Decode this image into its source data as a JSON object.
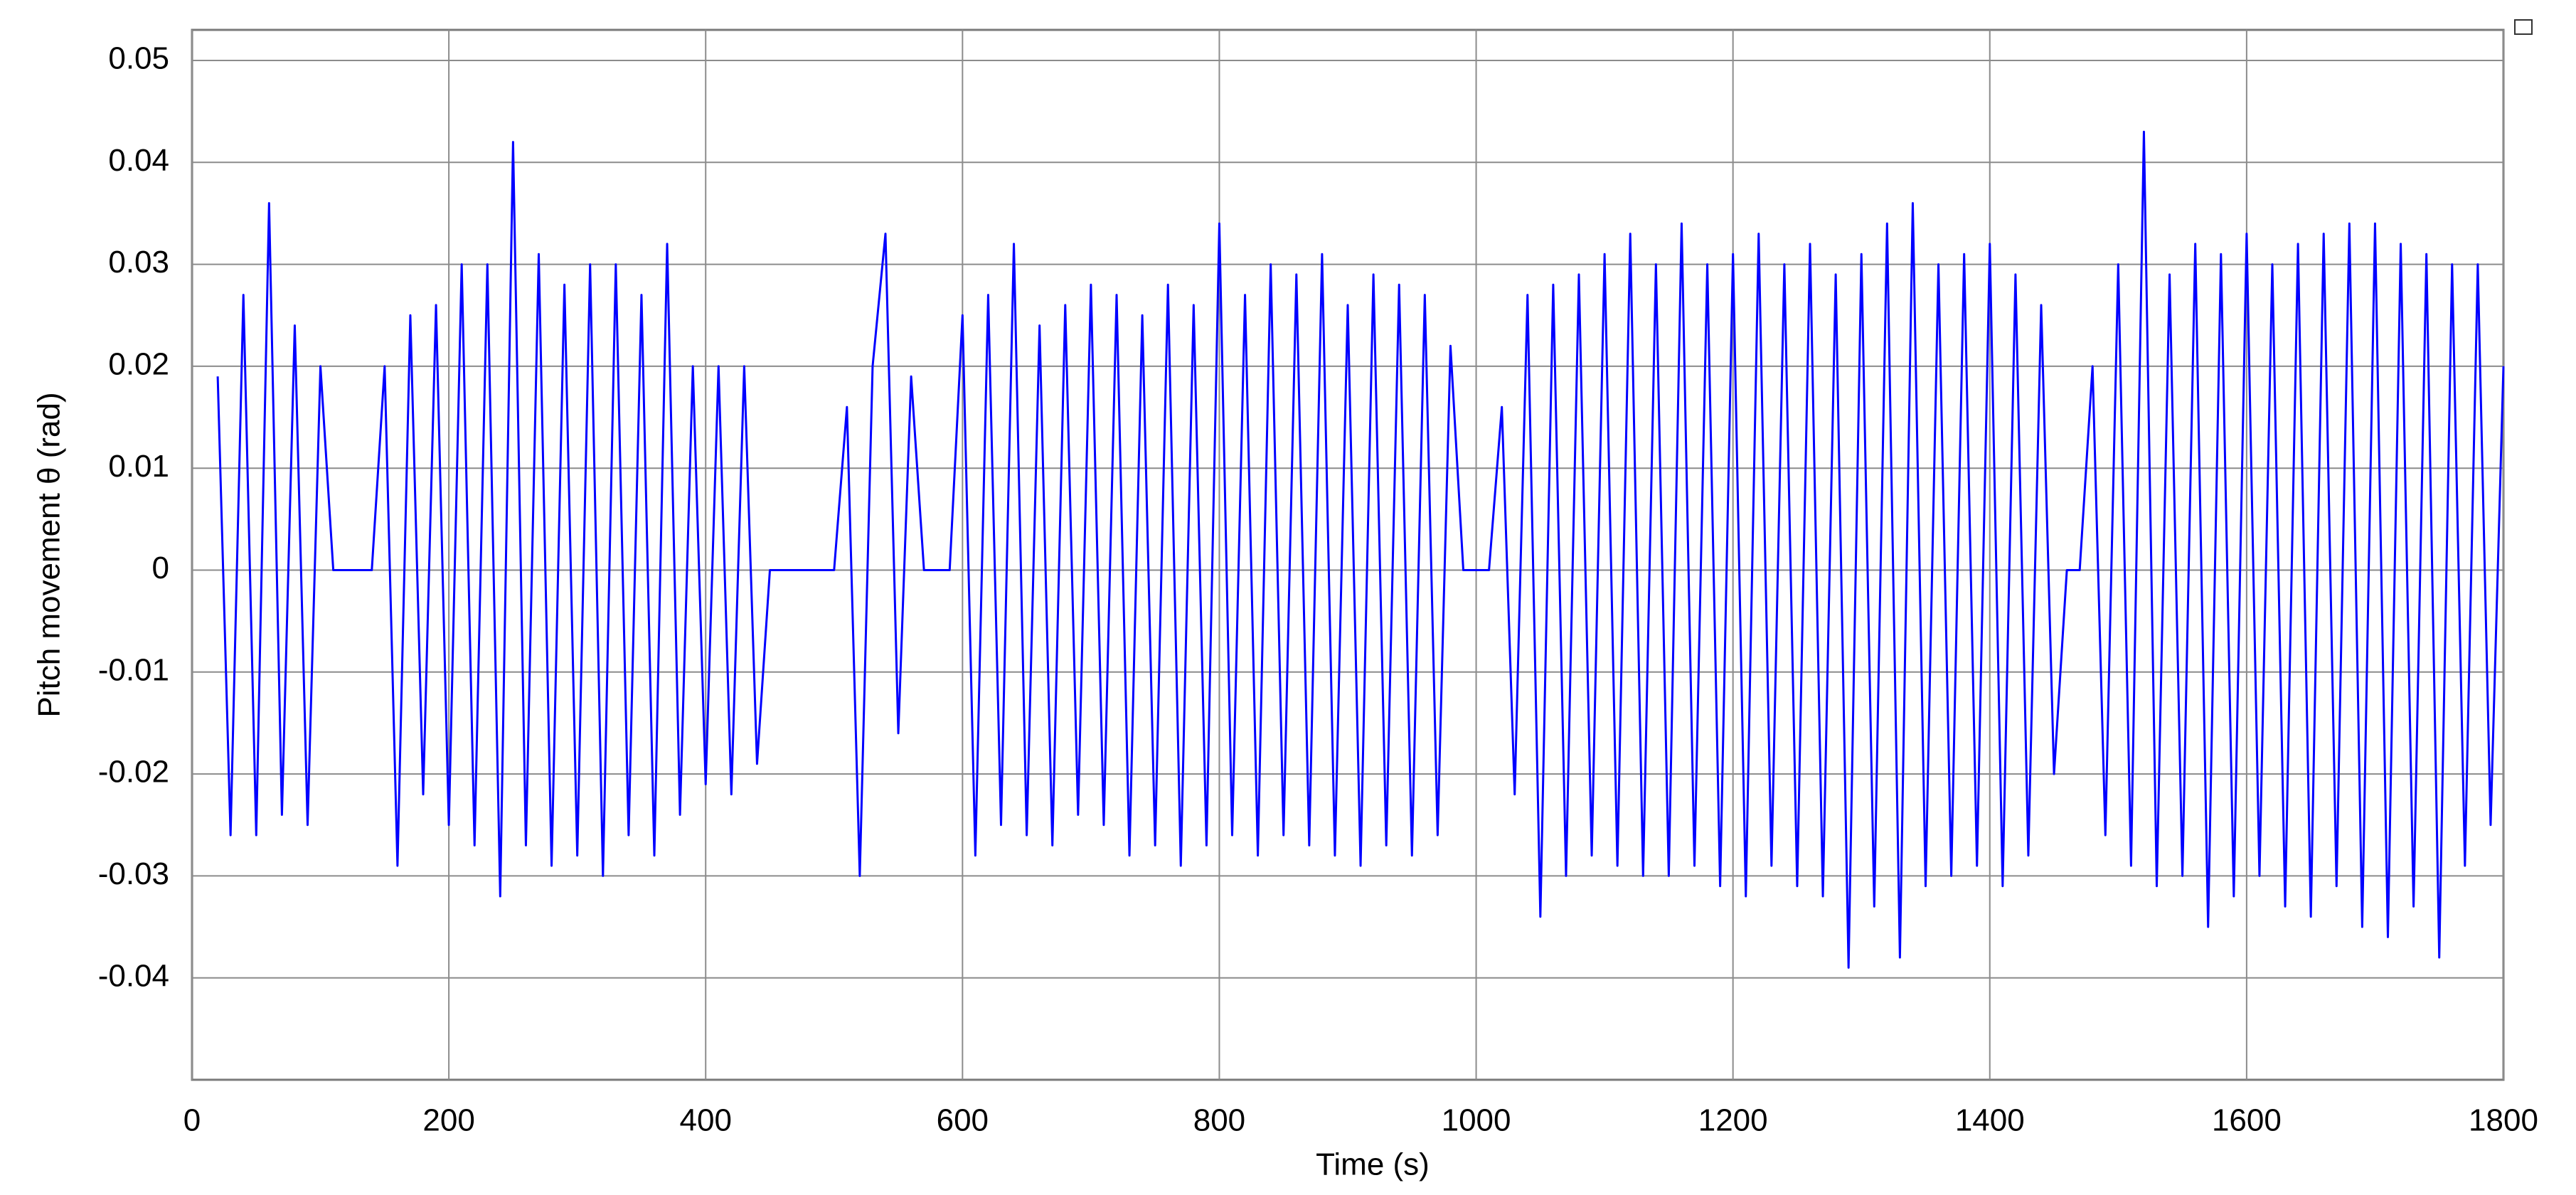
{
  "chart_data": {
    "type": "line",
    "x_label": "Time (s)",
    "y_label": "Pitch movement θ (rad)",
    "x": [
      20,
      30,
      40,
      50,
      60,
      70,
      80,
      90,
      100,
      110,
      120,
      130,
      140,
      150,
      160,
      170,
      180,
      190,
      200,
      210,
      220,
      230,
      240,
      250,
      260,
      270,
      280,
      290,
      300,
      310,
      320,
      330,
      340,
      350,
      360,
      370,
      380,
      390,
      400,
      410,
      420,
      430,
      440,
      450,
      460,
      470,
      480,
      490,
      500,
      510,
      520,
      530,
      540,
      550,
      560,
      570,
      580,
      590,
      600,
      610,
      620,
      630,
      640,
      650,
      660,
      670,
      680,
      690,
      700,
      710,
      720,
      730,
      740,
      750,
      760,
      770,
      780,
      790,
      800,
      810,
      820,
      830,
      840,
      850,
      860,
      870,
      880,
      890,
      900,
      910,
      920,
      930,
      940,
      950,
      960,
      970,
      980,
      990,
      1000,
      1010,
      1020,
      1030,
      1040,
      1050,
      1060,
      1070,
      1080,
      1090,
      1100,
      1110,
      1120,
      1130,
      1140,
      1150,
      1160,
      1170,
      1180,
      1190,
      1200,
      1210,
      1220,
      1230,
      1240,
      1250,
      1260,
      1270,
      1280,
      1290,
      1300,
      1310,
      1320,
      1330,
      1340,
      1350,
      1360,
      1370,
      1380,
      1390,
      1400,
      1410,
      1420,
      1430,
      1440,
      1450,
      1460,
      1470,
      1480,
      1490,
      1500,
      1510,
      1520,
      1530,
      1540,
      1550,
      1560,
      1570,
      1580,
      1590,
      1600,
      1610,
      1620,
      1630,
      1640,
      1650,
      1660,
      1670,
      1680,
      1690,
      1700,
      1710,
      1720,
      1730,
      1740,
      1750,
      1760,
      1770,
      1780,
      1790,
      1800
    ],
    "values": [
      0.019,
      -0.026,
      0.027,
      -0.026,
      0.036,
      -0.024,
      0.024,
      -0.025,
      0.02,
      0,
      0,
      0,
      0,
      0.02,
      -0.029,
      0.025,
      -0.022,
      0.026,
      -0.025,
      0.03,
      -0.027,
      0.03,
      -0.032,
      0.042,
      -0.027,
      0.031,
      -0.029,
      0.028,
      -0.028,
      0.03,
      -0.03,
      0.03,
      -0.026,
      0.027,
      -0.028,
      0.032,
      -0.024,
      0.02,
      -0.021,
      0.02,
      -0.022,
      0.02,
      -0.019,
      0,
      0,
      0,
      0,
      0,
      0,
      0.016,
      -0.03,
      0.02,
      0.033,
      -0.016,
      0.019,
      0,
      0,
      0,
      0.025,
      -0.028,
      0.027,
      -0.025,
      0.032,
      -0.026,
      0.024,
      -0.027,
      0.026,
      -0.024,
      0.028,
      -0.025,
      0.027,
      -0.028,
      0.025,
      -0.027,
      0.028,
      -0.029,
      0.026,
      -0.027,
      0.034,
      -0.026,
      0.027,
      -0.028,
      0.03,
      -0.026,
      0.029,
      -0.027,
      0.031,
      -0.028,
      0.026,
      -0.029,
      0.029,
      -0.027,
      0.028,
      -0.028,
      0.027,
      -0.026,
      0.022,
      0,
      0,
      0,
      0.016,
      -0.022,
      0.027,
      -0.034,
      0.028,
      -0.03,
      0.029,
      -0.028,
      0.031,
      -0.029,
      0.033,
      -0.03,
      0.03,
      -0.03,
      0.034,
      -0.029,
      0.03,
      -0.031,
      0.031,
      -0.032,
      0.033,
      -0.029,
      0.03,
      -0.031,
      0.032,
      -0.032,
      0.029,
      -0.039,
      0.031,
      -0.033,
      0.034,
      -0.038,
      0.036,
      -0.031,
      0.03,
      -0.03,
      0.031,
      -0.029,
      0.032,
      -0.031,
      0.029,
      -0.028,
      0.026,
      -0.02,
      0,
      0,
      0.02,
      -0.026,
      0.03,
      -0.029,
      0.043,
      -0.031,
      0.029,
      -0.03,
      0.032,
      -0.035,
      0.031,
      -0.032,
      0.033,
      -0.03,
      0.03,
      -0.033,
      0.032,
      -0.034,
      0.033,
      -0.031,
      0.034,
      -0.035,
      0.034,
      -0.036,
      0.032,
      -0.033,
      0.031,
      -0.038,
      0.03,
      -0.029,
      0.03,
      -0.025,
      0.02
    ],
    "color": "#0000ff",
    "xlim": [
      0,
      1800
    ],
    "xticks": [
      0,
      200,
      400,
      600,
      800,
      1000,
      1200,
      1400,
      1600,
      1800
    ],
    "ylim": [
      -0.05,
      0.053
    ],
    "yticks": [
      -0.04,
      -0.03,
      -0.02,
      -0.01,
      0,
      0.01,
      0.02,
      0.03,
      0.04,
      0.05
    ],
    "grid": true
  }
}
